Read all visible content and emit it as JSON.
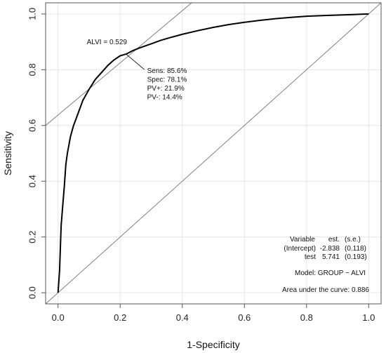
{
  "chart_data": {
    "type": "line",
    "title": "",
    "xlabel": "1-Specificity",
    "ylabel": "Sensitivity",
    "xlim": [
      -0.04,
      1.04
    ],
    "ylim": [
      -0.04,
      1.04
    ],
    "x_ticks": [
      "0.0",
      "0.2",
      "0.4",
      "0.6",
      "0.8",
      "1.0"
    ],
    "y_ticks": [
      "0.0",
      "0.2",
      "0.4",
      "0.6",
      "0.8",
      "1.0"
    ],
    "grid": true,
    "series": [
      {
        "x": [
          0.0,
          0.005,
          0.01,
          0.015,
          0.02,
          0.025,
          0.03,
          0.035,
          0.04,
          0.05,
          0.06,
          0.07,
          0.08,
          0.09,
          0.1,
          0.12,
          0.14,
          0.16,
          0.18,
          0.2,
          0.219,
          0.24,
          0.26,
          0.28,
          0.3,
          0.33,
          0.36,
          0.4,
          0.45,
          0.5,
          0.55,
          0.6,
          0.65,
          0.7,
          0.75,
          0.8,
          0.85,
          0.9,
          0.95,
          1.0
        ],
        "y": [
          0.0,
          0.08,
          0.24,
          0.31,
          0.38,
          0.46,
          0.5,
          0.53,
          0.56,
          0.6,
          0.63,
          0.66,
          0.69,
          0.71,
          0.73,
          0.765,
          0.79,
          0.815,
          0.835,
          0.85,
          0.856,
          0.868,
          0.877,
          0.885,
          0.893,
          0.905,
          0.915,
          0.927,
          0.94,
          0.952,
          0.962,
          0.97,
          0.977,
          0.983,
          0.988,
          0.992,
          0.994,
          0.996,
          0.998,
          1.0
        ]
      }
    ],
    "reference_lines": [
      {
        "kind": "diagonal",
        "x": [
          -0.04,
          1.04
        ],
        "y": [
          -0.04,
          1.04
        ]
      },
      {
        "kind": "tangent",
        "x": [
          -0.04,
          0.43
        ],
        "y": [
          0.6,
          1.04
        ]
      }
    ],
    "cutoff_point": {
      "x": 0.219,
      "y": 0.856
    },
    "annotations": {
      "cutoff": "ALVI = 0.529",
      "stats": [
        "Sens: 85.6%",
        "Spec: 78.1%",
        "PV+: 21.9%",
        "PV-: 14.4%"
      ],
      "table_header": [
        "Variable",
        "est.",
        "(s.e.)"
      ],
      "table_rows": [
        [
          "(Intercept)",
          "-2.838",
          "(0.118)"
        ],
        [
          "test",
          "5.741",
          "(0.193)"
        ]
      ],
      "model": "Model:  GROUP ~ ALVI",
      "auc": "Area under the curve: 0.886"
    },
    "colors": {
      "curve": "#000000",
      "reference": "#777777",
      "grid": "#e6e6e6",
      "frame": "#555555"
    }
  }
}
